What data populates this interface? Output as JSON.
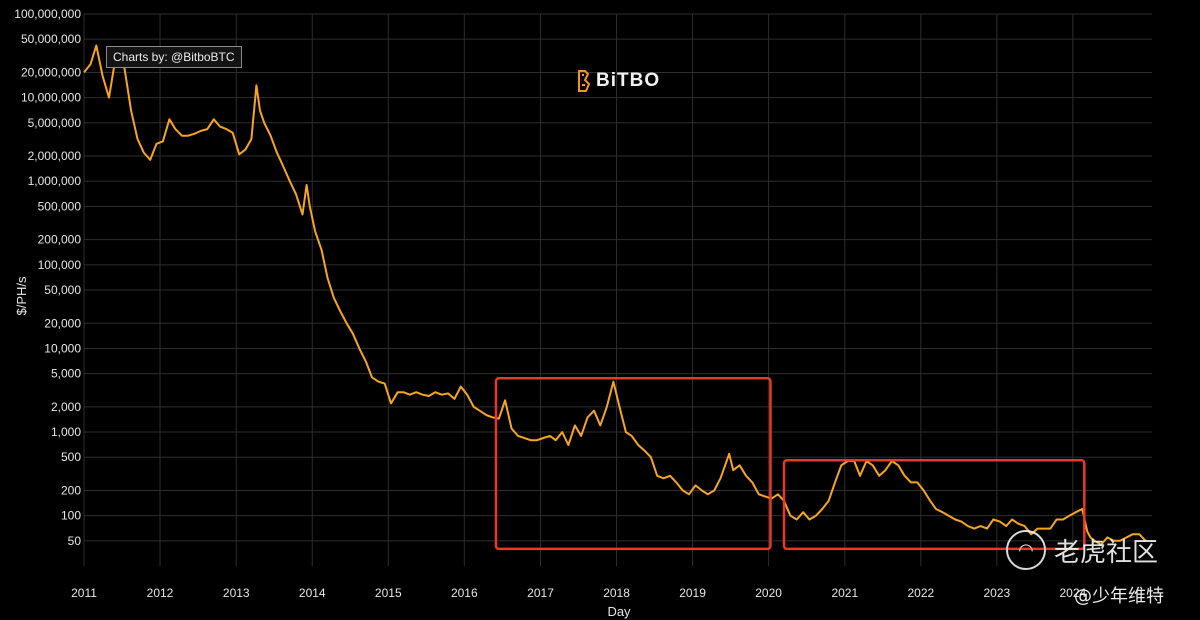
{
  "credit": "Charts by: @BitboBTC",
  "logo": {
    "text": "BiTBO",
    "icon": "bitbo-logo-icon",
    "color": "#f7931a"
  },
  "watermark": {
    "text": "老虎社区",
    "icon": "tiger-community-icon"
  },
  "handle": "@少年维特",
  "colors": {
    "line": "#f7a51c",
    "highlight": "#e8382b",
    "grid": "#2e2e2e",
    "background": "#000000"
  },
  "chart_data": {
    "type": "line",
    "title": "",
    "xlabel": "Day",
    "ylabel": "$/PH/s",
    "yscale": "log",
    "ylim": [
      25,
      100000000
    ],
    "xlim": [
      "2011-01-01",
      "2025-01-15"
    ],
    "grid": true,
    "y_ticks": [
      {
        "value": 100000000,
        "label": "100,000,000"
      },
      {
        "value": 50000000,
        "label": "50,000,000"
      },
      {
        "value": 20000000,
        "label": "20,000,000"
      },
      {
        "value": 10000000,
        "label": "10,000,000"
      },
      {
        "value": 5000000,
        "label": "5,000,000"
      },
      {
        "value": 2000000,
        "label": "2,000,000"
      },
      {
        "value": 1000000,
        "label": "1,000,000"
      },
      {
        "value": 500000,
        "label": "500,000"
      },
      {
        "value": 200000,
        "label": "200,000"
      },
      {
        "value": 100000,
        "label": "100,000"
      },
      {
        "value": 50000,
        "label": "50,000"
      },
      {
        "value": 20000,
        "label": "20,000"
      },
      {
        "value": 10000,
        "label": "10,000"
      },
      {
        "value": 5000,
        "label": "5,000"
      },
      {
        "value": 2000,
        "label": "2,000"
      },
      {
        "value": 1000,
        "label": "1,000"
      },
      {
        "value": 500,
        "label": "500"
      },
      {
        "value": 200,
        "label": "200"
      },
      {
        "value": 100,
        "label": "100"
      },
      {
        "value": 50,
        "label": "50"
      }
    ],
    "x_ticks": [
      {
        "value": "2011-01-01",
        "label": "2011"
      },
      {
        "value": "2012-01-01",
        "label": "2012"
      },
      {
        "value": "2013-01-01",
        "label": "2013"
      },
      {
        "value": "2014-01-01",
        "label": "2014"
      },
      {
        "value": "2015-01-01",
        "label": "2015"
      },
      {
        "value": "2016-01-01",
        "label": "2016"
      },
      {
        "value": "2017-01-01",
        "label": "2017"
      },
      {
        "value": "2018-01-01",
        "label": "2018"
      },
      {
        "value": "2019-01-01",
        "label": "2019"
      },
      {
        "value": "2020-01-01",
        "label": "2020"
      },
      {
        "value": "2021-01-01",
        "label": "2021"
      },
      {
        "value": "2022-01-01",
        "label": "2022"
      },
      {
        "value": "2023-01-01",
        "label": "2023"
      },
      {
        "value": "2024-01-01",
        "label": "2024"
      }
    ],
    "series": [
      {
        "x": [
          "2011-01-01",
          "2011-02-01",
          "2011-03-01",
          "2011-04-01",
          "2011-05-01",
          "2011-06-10",
          "2011-07-15",
          "2011-08-15",
          "2011-09-15",
          "2011-10-15",
          "2011-11-15",
          "2011-12-15",
          "2012-01-15",
          "2012-02-15",
          "2012-03-15",
          "2012-04-15",
          "2012-05-15",
          "2012-06-15",
          "2012-07-15",
          "2012-08-15",
          "2012-09-15",
          "2012-10-15",
          "2012-11-15",
          "2012-12-15",
          "2013-01-15",
          "2013-02-15",
          "2013-03-15",
          "2013-04-08",
          "2013-04-25",
          "2013-05-15",
          "2013-06-15",
          "2013-07-15",
          "2013-08-15",
          "2013-09-15",
          "2013-10-15",
          "2013-11-15",
          "2013-12-05",
          "2013-12-20",
          "2014-01-15",
          "2014-02-15",
          "2014-03-15",
          "2014-04-15",
          "2014-05-15",
          "2014-06-15",
          "2014-07-15",
          "2014-08-15",
          "2014-09-15",
          "2014-10-15",
          "2014-11-15",
          "2014-12-15",
          "2015-01-14",
          "2015-02-15",
          "2015-03-15",
          "2015-04-15",
          "2015-05-15",
          "2015-06-15",
          "2015-07-15",
          "2015-08-15",
          "2015-09-15",
          "2015-10-15",
          "2015-11-15",
          "2015-12-15",
          "2016-01-15",
          "2016-02-15",
          "2016-03-15",
          "2016-04-15",
          "2016-05-15",
          "2016-06-15",
          "2016-07-15",
          "2016-08-15",
          "2016-09-15",
          "2016-10-15",
          "2016-11-15",
          "2016-12-15",
          "2017-01-15",
          "2017-02-15",
          "2017-03-15",
          "2017-04-15",
          "2017-05-15",
          "2017-06-15",
          "2017-07-15",
          "2017-08-15",
          "2017-09-15",
          "2017-10-15",
          "2017-11-15",
          "2017-12-17",
          "2018-01-15",
          "2018-02-15",
          "2018-03-15",
          "2018-04-15",
          "2018-05-15",
          "2018-06-15",
          "2018-07-15",
          "2018-08-15",
          "2018-09-15",
          "2018-10-15",
          "2018-11-15",
          "2018-12-15",
          "2019-01-15",
          "2019-02-15",
          "2019-03-15",
          "2019-04-15",
          "2019-05-15",
          "2019-06-26",
          "2019-07-15",
          "2019-08-15",
          "2019-09-15",
          "2019-10-15",
          "2019-11-15",
          "2019-12-15",
          "2020-01-15",
          "2020-02-15",
          "2020-03-15",
          "2020-04-15",
          "2020-05-15",
          "2020-06-15",
          "2020-07-15",
          "2020-08-15",
          "2020-09-15",
          "2020-10-15",
          "2020-11-15",
          "2020-12-15",
          "2021-01-15",
          "2021-02-15",
          "2021-03-15",
          "2021-04-15",
          "2021-05-15",
          "2021-06-15",
          "2021-07-15",
          "2021-08-15",
          "2021-09-15",
          "2021-10-15",
          "2021-11-15",
          "2021-12-15",
          "2022-01-15",
          "2022-02-15",
          "2022-03-15",
          "2022-04-15",
          "2022-05-15",
          "2022-06-15",
          "2022-07-15",
          "2022-08-15",
          "2022-09-15",
          "2022-10-15",
          "2022-11-15",
          "2022-12-15",
          "2023-01-15",
          "2023-02-15",
          "2023-03-15",
          "2023-04-15",
          "2023-05-15",
          "2023-06-15",
          "2023-07-15",
          "2023-08-15",
          "2023-09-15",
          "2023-10-15",
          "2023-11-15",
          "2023-12-15",
          "2024-01-15",
          "2024-02-15",
          "2024-03-10",
          "2024-03-25",
          "2024-04-15",
          "2024-05-15",
          "2024-06-15",
          "2024-07-15",
          "2024-08-15",
          "2024-09-15",
          "2024-10-15",
          "2024-11-15",
          "2024-12-15"
        ],
        "y": [
          20000000,
          25000000,
          42000000,
          18000000,
          10000000,
          40000000,
          22000000,
          7000000,
          3200000,
          2200000,
          1800000,
          2800000,
          3000000,
          5500000,
          4200000,
          3500000,
          3500000,
          3700000,
          4000000,
          4200000,
          5500000,
          4500000,
          4200000,
          3800000,
          2100000,
          2400000,
          3200000,
          14000000,
          7000000,
          5000000,
          3500000,
          2200000,
          1500000,
          1000000,
          700000,
          400000,
          900000,
          500000,
          250000,
          150000,
          70000,
          40000,
          28000,
          20000,
          15000,
          10000,
          7000,
          4500,
          4000,
          3800,
          2200,
          3000,
          3000,
          2800,
          3000,
          2800,
          2700,
          3000,
          2800,
          2900,
          2500,
          3500,
          2800,
          2000,
          1800,
          1600,
          1500,
          1450,
          2400,
          1100,
          900,
          850,
          800,
          800,
          850,
          900,
          800,
          1000,
          700,
          1200,
          900,
          1500,
          1800,
          1200,
          2000,
          4000,
          2000,
          1000,
          900,
          700,
          600,
          500,
          300,
          280,
          300,
          250,
          200,
          180,
          230,
          200,
          180,
          200,
          280,
          550,
          350,
          400,
          300,
          250,
          180,
          170,
          160,
          180,
          150,
          100,
          90,
          110,
          90,
          100,
          120,
          150,
          250,
          400,
          450,
          450,
          300,
          450,
          400,
          300,
          350,
          450,
          400,
          300,
          250,
          250,
          200,
          150,
          120,
          110,
          100,
          90,
          85,
          75,
          70,
          75,
          70,
          90,
          85,
          75,
          90,
          80,
          75,
          60,
          70,
          70,
          70,
          90,
          90,
          100,
          110,
          120,
          65,
          55,
          50,
          45,
          55,
          50,
          50,
          55,
          60,
          60,
          50
        ]
      }
    ],
    "annotations": [
      {
        "type": "rectangle",
        "label": "",
        "x0": "2016-06-01",
        "x1": "2020-01-10",
        "y0": 40,
        "y1": 4400
      },
      {
        "type": "rectangle",
        "label": "",
        "x0": "2020-03-15",
        "x1": "2024-02-25",
        "y0": 40,
        "y1": 460
      }
    ]
  }
}
